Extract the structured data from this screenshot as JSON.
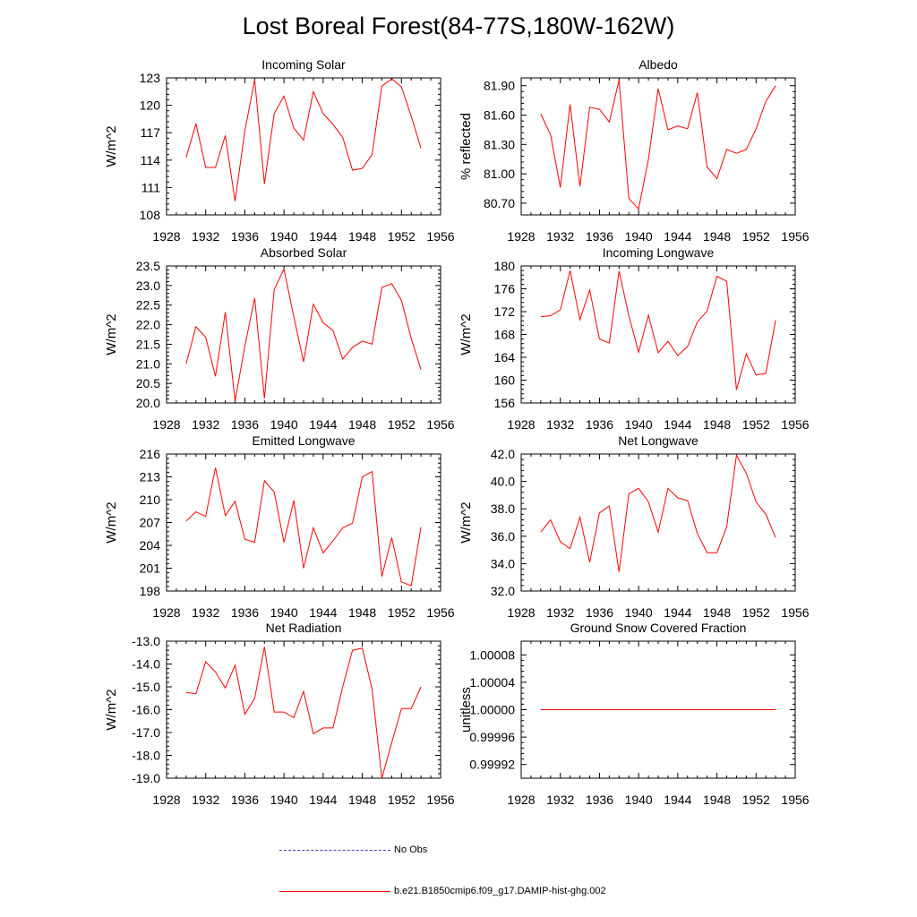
{
  "title": "Lost Boreal Forest(84-77S,180W-162W)",
  "colors": {
    "model": "#ff0000",
    "obs": "#4040c0",
    "axis": "#000000"
  },
  "legend": [
    {
      "label": "No Obs",
      "style": "dashed",
      "color": "#4040c0"
    },
    {
      "label": "b.e21.B1850cmip6.f09_g17.DAMIP-hist-ghg.002",
      "style": "solid",
      "color": "#ff0000"
    }
  ],
  "chart_data": [
    {
      "type": "line",
      "title": "Incoming Solar",
      "ylabel": "W/m^2",
      "xlim": [
        1928,
        1956
      ],
      "ylim": [
        108,
        123
      ],
      "xticks": [
        1928,
        1932,
        1936,
        1940,
        1944,
        1948,
        1952,
        1956
      ],
      "yticks": [
        "108",
        "111",
        "114",
        "117",
        "120",
        "123"
      ],
      "x": [
        1930,
        1931,
        1932,
        1933,
        1934,
        1935,
        1936,
        1937,
        1938,
        1939,
        1940,
        1941,
        1942,
        1943,
        1944,
        1945,
        1946,
        1947,
        1948,
        1949,
        1950,
        1951,
        1952,
        1953,
        1954
      ],
      "series": [
        {
          "values": [
            114.3,
            118.0,
            113.2,
            113.2,
            116.7,
            109.5,
            117.2,
            122.8,
            111.4,
            119.1,
            121.0,
            117.5,
            116.2,
            121.5,
            119.1,
            117.9,
            116.5,
            112.9,
            113.1,
            114.6,
            122.1,
            122.9,
            122.0,
            118.8,
            115.3
          ]
        }
      ]
    },
    {
      "type": "line",
      "title": "Albedo",
      "ylabel": "% reflected",
      "xlim": [
        1928,
        1956
      ],
      "ylim": [
        80.58,
        81.98
      ],
      "xticks": [
        1928,
        1932,
        1936,
        1940,
        1944,
        1948,
        1952,
        1956
      ],
      "yticks": [
        "80.70",
        "81.00",
        "81.30",
        "81.60",
        "81.90"
      ],
      "x": [
        1930,
        1931,
        1932,
        1933,
        1934,
        1935,
        1936,
        1937,
        1938,
        1939,
        1940,
        1941,
        1942,
        1943,
        1944,
        1945,
        1946,
        1947,
        1948,
        1949,
        1950,
        1951,
        1952,
        1953,
        1954
      ],
      "series": [
        {
          "values": [
            81.61,
            81.4,
            80.86,
            81.71,
            80.87,
            81.68,
            81.66,
            81.53,
            81.96,
            80.75,
            80.64,
            81.15,
            81.87,
            81.45,
            81.49,
            81.46,
            81.83,
            81.07,
            80.95,
            81.25,
            81.21,
            81.25,
            81.46,
            81.74,
            81.9
          ]
        }
      ]
    },
    {
      "type": "line",
      "title": "Absorbed Solar",
      "ylabel": "W/m^2",
      "xlim": [
        1928,
        1956
      ],
      "ylim": [
        20.0,
        23.5
      ],
      "xticks": [
        1928,
        1932,
        1936,
        1940,
        1944,
        1948,
        1952,
        1956
      ],
      "yticks": [
        "20.0",
        "20.5",
        "21.0",
        "21.5",
        "22.0",
        "22.5",
        "23.0",
        "23.5"
      ],
      "x": [
        1930,
        1931,
        1932,
        1933,
        1934,
        1935,
        1936,
        1937,
        1938,
        1939,
        1940,
        1941,
        1942,
        1943,
        1944,
        1945,
        1946,
        1947,
        1948,
        1949,
        1950,
        1951,
        1952,
        1953,
        1954
      ],
      "series": [
        {
          "values": [
            21.0,
            21.95,
            21.68,
            20.68,
            22.32,
            20.05,
            21.45,
            22.68,
            20.12,
            22.9,
            23.42,
            22.2,
            21.05,
            22.52,
            22.05,
            21.85,
            21.12,
            21.42,
            21.58,
            21.5,
            22.95,
            23.05,
            22.62,
            21.65,
            20.85
          ]
        }
      ]
    },
    {
      "type": "line",
      "title": "Incoming Longwave",
      "ylabel": "W/m^2",
      "xlim": [
        1928,
        1956
      ],
      "ylim": [
        156,
        180
      ],
      "xticks": [
        1928,
        1932,
        1936,
        1940,
        1944,
        1948,
        1952,
        1956
      ],
      "yticks": [
        "156",
        "160",
        "164",
        "168",
        "172",
        "176",
        "180"
      ],
      "x": [
        1930,
        1931,
        1932,
        1933,
        1934,
        1935,
        1936,
        1937,
        1938,
        1939,
        1940,
        1941,
        1942,
        1943,
        1944,
        1945,
        1946,
        1947,
        1948,
        1949,
        1950,
        1951,
        1952,
        1953,
        1954
      ],
      "series": [
        {
          "values": [
            171.1,
            171.3,
            172.3,
            179.2,
            170.6,
            175.8,
            167.2,
            166.5,
            179.1,
            171.3,
            164.9,
            171.4,
            164.8,
            166.8,
            164.3,
            165.9,
            170.2,
            172.1,
            178.2,
            177.3,
            158.3,
            164.6,
            160.9,
            161.2,
            170.5
          ]
        }
      ]
    },
    {
      "type": "line",
      "title": "Emitted Longwave",
      "ylabel": "W/m^2",
      "xlim": [
        1928,
        1956
      ],
      "ylim": [
        198,
        216
      ],
      "xticks": [
        1928,
        1932,
        1936,
        1940,
        1944,
        1948,
        1952,
        1956
      ],
      "yticks": [
        "198",
        "201",
        "204",
        "207",
        "210",
        "213",
        "216"
      ],
      "x": [
        1930,
        1931,
        1932,
        1933,
        1934,
        1935,
        1936,
        1937,
        1938,
        1939,
        1940,
        1941,
        1942,
        1943,
        1944,
        1945,
        1946,
        1947,
        1948,
        1949,
        1950,
        1951,
        1952,
        1953,
        1954
      ],
      "series": [
        {
          "values": [
            207.2,
            208.4,
            207.8,
            214.2,
            207.9,
            209.8,
            204.8,
            204.4,
            212.5,
            211.0,
            204.4,
            209.9,
            201.0,
            206.3,
            203.0,
            204.6,
            206.3,
            206.9,
            213.0,
            213.7,
            199.9,
            205.0,
            199.2,
            198.7,
            206.4
          ]
        }
      ]
    },
    {
      "type": "line",
      "title": "Net Longwave",
      "ylabel": "W/m^2",
      "xlim": [
        1928,
        1956
      ],
      "ylim": [
        32,
        42
      ],
      "xticks": [
        1928,
        1932,
        1936,
        1940,
        1944,
        1948,
        1952,
        1956
      ],
      "yticks": [
        "32.0",
        "34.0",
        "36.0",
        "38.0",
        "40.0",
        "42.0"
      ],
      "x": [
        1930,
        1931,
        1932,
        1933,
        1934,
        1935,
        1936,
        1937,
        1938,
        1939,
        1940,
        1941,
        1942,
        1943,
        1944,
        1945,
        1946,
        1947,
        1948,
        1949,
        1950,
        1951,
        1952,
        1953,
        1954
      ],
      "series": [
        {
          "values": [
            36.3,
            37.2,
            35.6,
            35.1,
            37.4,
            34.1,
            37.7,
            38.2,
            33.4,
            39.1,
            39.5,
            38.5,
            36.3,
            39.5,
            38.8,
            38.6,
            36.2,
            34.8,
            34.8,
            36.7,
            41.9,
            40.6,
            38.5,
            37.6,
            35.9
          ]
        }
      ]
    },
    {
      "type": "line",
      "title": "Net Radiation",
      "ylabel": "W/m^2",
      "xlim": [
        1928,
        1956
      ],
      "ylim": [
        -19,
        -13
      ],
      "xticks": [
        1928,
        1932,
        1936,
        1940,
        1944,
        1948,
        1952,
        1956
      ],
      "yticks": [
        "-19.0",
        "-18.0",
        "-17.0",
        "-16.0",
        "-15.0",
        "-14.0",
        "-13.0"
      ],
      "x": [
        1930,
        1931,
        1932,
        1933,
        1934,
        1935,
        1936,
        1937,
        1938,
        1939,
        1940,
        1941,
        1942,
        1943,
        1944,
        1945,
        1946,
        1947,
        1948,
        1949,
        1950,
        1951,
        1952,
        1953,
        1954
      ],
      "series": [
        {
          "values": [
            -15.25,
            -15.3,
            -13.9,
            -14.35,
            -15.05,
            -14.05,
            -16.2,
            -15.5,
            -13.25,
            -16.1,
            -16.1,
            -16.35,
            -15.2,
            -17.05,
            -16.8,
            -16.8,
            -15.0,
            -13.4,
            -13.3,
            -15.1,
            -19.0,
            -17.45,
            -15.95,
            -15.95,
            -15.0
          ]
        }
      ]
    },
    {
      "type": "line",
      "title": "Ground Snow Covered Fraction",
      "ylabel": "unitless",
      "xlim": [
        1928,
        1956
      ],
      "ylim": [
        0.9999,
        1.0001
      ],
      "xticks": [
        1928,
        1932,
        1936,
        1940,
        1944,
        1948,
        1952,
        1956
      ],
      "yticks": [
        "0.99992",
        "0.99996",
        "1.00000",
        "1.00004",
        "1.00008"
      ],
      "x": [
        1930,
        1954
      ],
      "series": [
        {
          "values": [
            1.0,
            1.0
          ]
        }
      ]
    }
  ]
}
